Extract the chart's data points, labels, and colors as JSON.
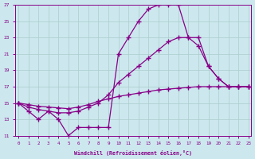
{
  "xlabel": "Windchill (Refroidissement éolien,°C)",
  "x": [
    0,
    1,
    2,
    3,
    4,
    5,
    6,
    7,
    8,
    9,
    10,
    11,
    12,
    13,
    14,
    15,
    16,
    17,
    18,
    19,
    20,
    21,
    22,
    23
  ],
  "y_jagged": [
    15,
    14,
    13,
    14,
    13,
    11,
    12,
    12,
    12,
    12,
    21,
    23,
    25,
    26.5,
    27,
    27,
    27,
    23,
    22,
    19.5,
    18,
    17,
    17,
    17
  ],
  "y_upper": [
    15,
    14.5,
    14.2,
    14.0,
    13.8,
    13.8,
    14.0,
    14.5,
    15.0,
    16.0,
    17.5,
    18.5,
    19.5,
    20.5,
    21.5,
    22.5,
    23.0,
    23.0,
    23.0,
    19.5,
    18,
    17,
    17,
    17
  ],
  "y_lower": [
    15,
    14.8,
    14.6,
    14.5,
    14.4,
    14.3,
    14.5,
    14.8,
    15.2,
    15.5,
    15.8,
    16.0,
    16.2,
    16.4,
    16.6,
    16.7,
    16.8,
    16.9,
    17.0,
    17.0,
    17.0,
    17.0,
    17.0,
    17.0
  ],
  "color": "#880088",
  "bg_color": "#cce8ee",
  "grid_color": "#aacccc",
  "ylim": [
    11,
    27
  ],
  "yticks": [
    11,
    13,
    15,
    17,
    19,
    21,
    23,
    25,
    27
  ],
  "xlim": [
    -0.3,
    23.3
  ]
}
